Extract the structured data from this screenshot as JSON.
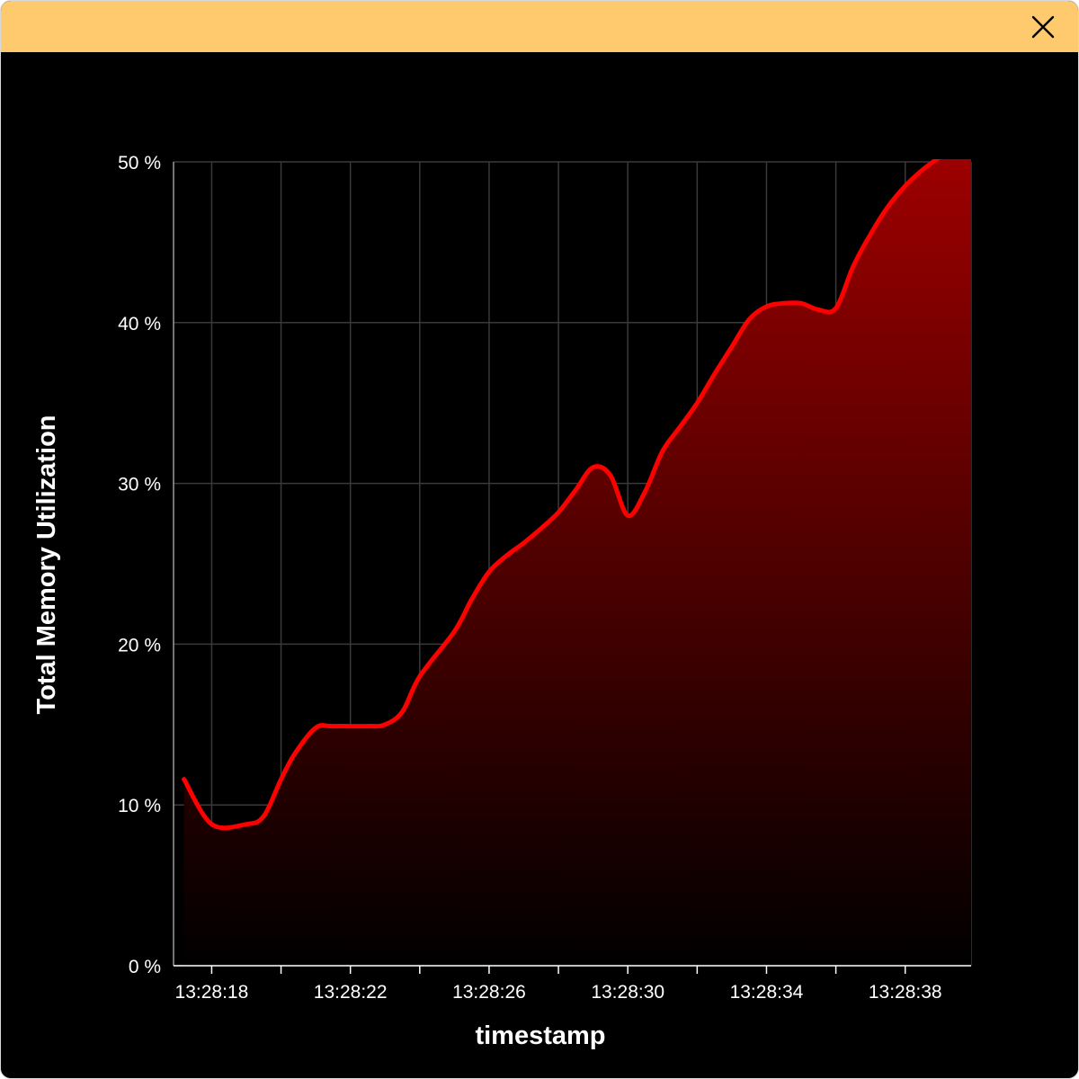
{
  "window": {
    "close_icon": "close-icon",
    "titlebar_color": "#ffca6e",
    "background_color": "#000000"
  },
  "chart_data": {
    "type": "area",
    "title": "",
    "xlabel": "timestamp",
    "ylabel": "Total Memory Utilization",
    "x_tick_labels": [
      "13:28:18",
      "13:28:22",
      "13:28:26",
      "13:28:30",
      "13:28:34",
      "13:28:38"
    ],
    "x_tick_seconds": [
      18,
      22,
      26,
      30,
      34,
      38
    ],
    "y_tick_labels": [
      "0 %",
      "10 %",
      "20 %",
      "30 %",
      "40 %",
      "50 %"
    ],
    "y_ticks": [
      0,
      10,
      20,
      30,
      40,
      50
    ],
    "xlim": [
      16.9,
      39.9
    ],
    "ylim": [
      0,
      50
    ],
    "grid": true,
    "line_color": "#ff0000",
    "fill_color": "#a00000",
    "x_seconds": [
      17.2,
      18.0,
      19.0,
      19.5,
      20.0,
      20.4,
      21.0,
      21.5,
      22.5,
      23.0,
      23.5,
      24.0,
      25.0,
      25.5,
      26.0,
      26.5,
      27.0,
      27.5,
      28.0,
      28.5,
      29.0,
      29.5,
      30.0,
      30.5,
      31.0,
      31.5,
      32.0,
      32.5,
      33.0,
      33.5,
      34.0,
      34.5,
      35.0,
      35.5,
      36.0,
      36.5,
      37.0,
      37.5,
      38.0,
      38.5,
      39.0,
      39.5,
      39.9
    ],
    "values": [
      11.6,
      8.8,
      8.8,
      9.3,
      11.6,
      13.2,
      14.8,
      14.9,
      14.9,
      15.0,
      15.8,
      18.0,
      20.8,
      22.8,
      24.5,
      25.5,
      26.3,
      27.2,
      28.2,
      29.6,
      31.0,
      30.5,
      28.0,
      29.5,
      32.0,
      33.5,
      35.0,
      36.8,
      38.5,
      40.2,
      41.0,
      41.2,
      41.2,
      40.8,
      40.9,
      43.5,
      45.5,
      47.2,
      48.5,
      49.5,
      50.3,
      51.0,
      51.3
    ]
  }
}
